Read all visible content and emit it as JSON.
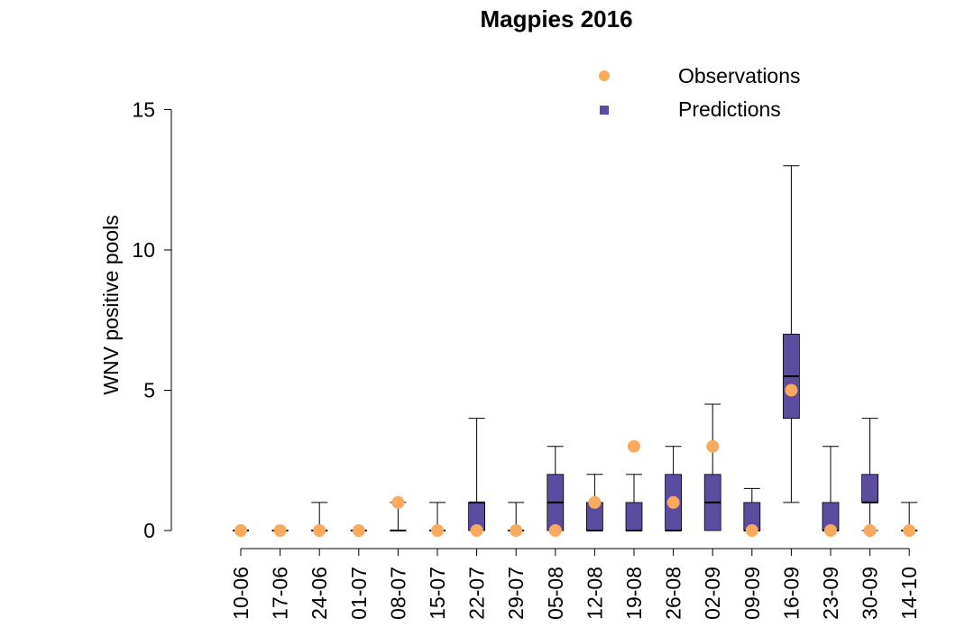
{
  "chart_data": {
    "type": "box",
    "title": "Magpies 2016",
    "xlabel": "",
    "ylabel": "WNV positive pools",
    "ylim": [
      0,
      15
    ],
    "yticks": [
      0,
      5,
      10,
      15
    ],
    "categories": [
      "10-06",
      "17-06",
      "24-06",
      "01-07",
      "08-07",
      "15-07",
      "22-07",
      "29-07",
      "05-08",
      "12-08",
      "19-08",
      "26-08",
      "02-09",
      "09-09",
      "16-09",
      "23-09",
      "30-09",
      "14-10"
    ],
    "legend": {
      "position": "top-right",
      "entries": [
        {
          "label": "Observations",
          "marker": "circle",
          "color": "#F9AA5E"
        },
        {
          "label": "Predictions",
          "marker": "square",
          "color": "#5B4C9F"
        }
      ]
    },
    "colors": {
      "observations": "#F9AA5E",
      "predictions": "#5B4C9F"
    },
    "predictions": [
      {
        "min": 0,
        "q1": 0,
        "median": 0,
        "q3": 0,
        "max": 0
      },
      {
        "min": 0,
        "q1": 0,
        "median": 0,
        "q3": 0,
        "max": 0
      },
      {
        "min": 0,
        "q1": 0,
        "median": 0,
        "q3": 0,
        "max": 1
      },
      {
        "min": 0,
        "q1": 0,
        "median": 0,
        "q3": 0,
        "max": 0
      },
      {
        "min": 0,
        "q1": 0,
        "median": 0,
        "q3": 0,
        "max": 1
      },
      {
        "min": 0,
        "q1": 0,
        "median": 0,
        "q3": 0,
        "max": 1
      },
      {
        "min": 0,
        "q1": 0,
        "median": 1,
        "q3": 1,
        "max": 4
      },
      {
        "min": 0,
        "q1": 0,
        "median": 0,
        "q3": 0,
        "max": 1
      },
      {
        "min": 0,
        "q1": 0,
        "median": 1,
        "q3": 2,
        "max": 3
      },
      {
        "min": 0,
        "q1": 0,
        "median": 0,
        "q3": 1,
        "max": 2
      },
      {
        "min": 0,
        "q1": 0,
        "median": 0,
        "q3": 1,
        "max": 2
      },
      {
        "min": 0,
        "q1": 0,
        "median": 0,
        "q3": 2,
        "max": 3
      },
      {
        "min": 0,
        "q1": 0,
        "median": 1,
        "q3": 2,
        "max": 4.5
      },
      {
        "min": 0,
        "q1": 0,
        "median": 0,
        "q3": 1,
        "max": 1.5
      },
      {
        "min": 1,
        "q1": 4,
        "median": 5.5,
        "q3": 7,
        "max": 13
      },
      {
        "min": 0,
        "q1": 0,
        "median": 0,
        "q3": 1,
        "max": 3
      },
      {
        "min": 0,
        "q1": 1,
        "median": 1,
        "q3": 2,
        "max": 4
      },
      {
        "min": 0,
        "q1": 0,
        "median": 0,
        "q3": 0,
        "max": 1
      }
    ],
    "observations": [
      0,
      0,
      0,
      0,
      1,
      0,
      0,
      0,
      0,
      1,
      3,
      1,
      3,
      0,
      5,
      0,
      0,
      0
    ]
  }
}
